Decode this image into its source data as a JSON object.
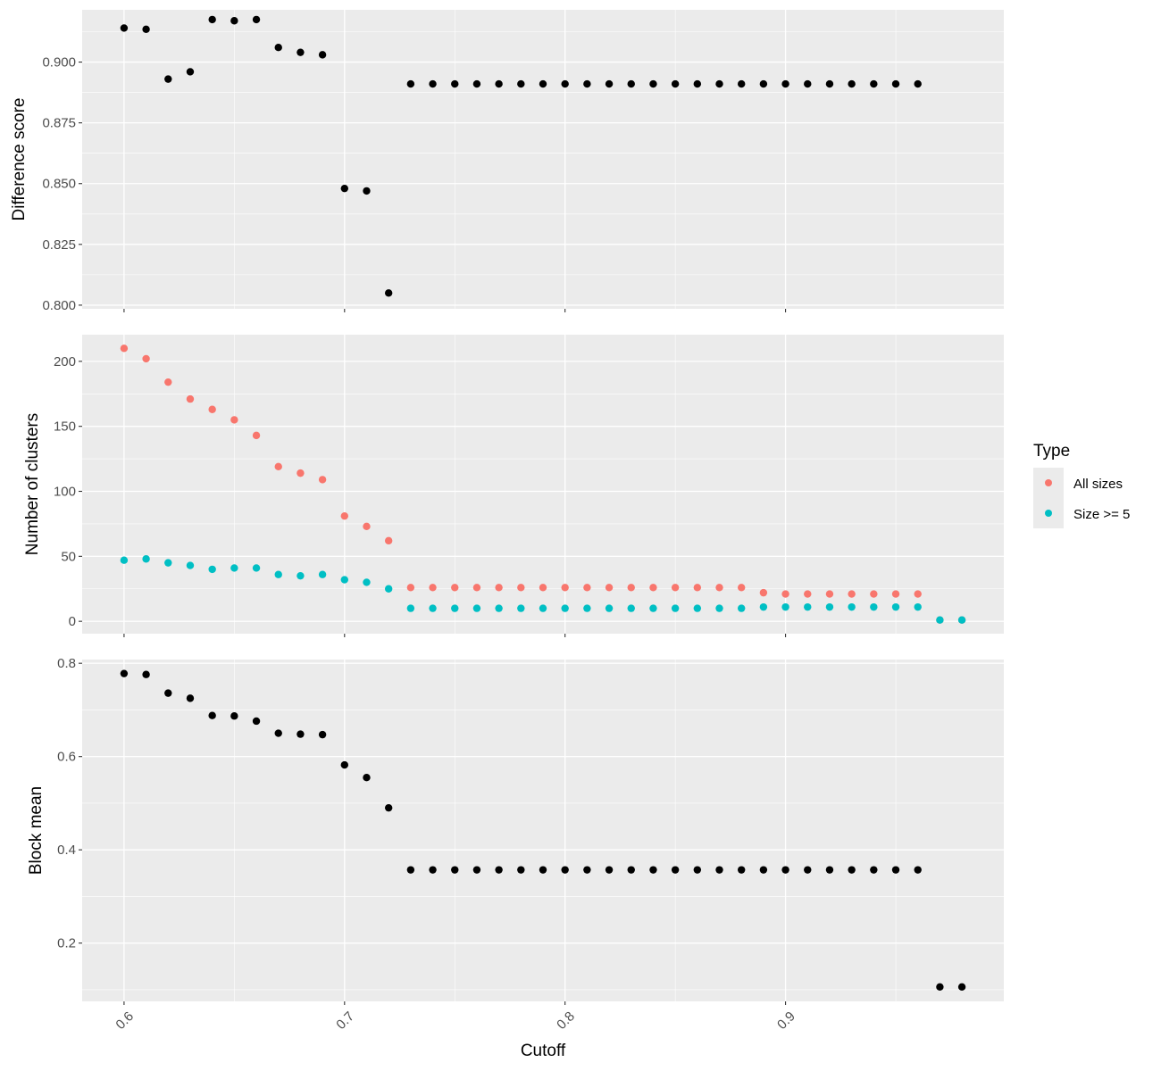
{
  "chart_data": [
    {
      "type": "scatter",
      "panel": "top",
      "title": "",
      "xlabel": "",
      "ylabel": "Difference score",
      "xlim": [
        0.581,
        0.999
      ],
      "ylim": [
        0.7985,
        0.9215
      ],
      "yticks": [
        0.8,
        0.825,
        0.85,
        0.875,
        0.9
      ],
      "ytick_labels": [
        "0.800",
        "0.825",
        "0.850",
        "0.875",
        "0.900"
      ],
      "grid": true,
      "series": [
        {
          "color": "#000000",
          "x": [
            0.6,
            0.61,
            0.62,
            0.63,
            0.64,
            0.65,
            0.66,
            0.67,
            0.68,
            0.69,
            0.7,
            0.71,
            0.72,
            0.73,
            0.74,
            0.75,
            0.76,
            0.77,
            0.78,
            0.79,
            0.8,
            0.81,
            0.82,
            0.83,
            0.84,
            0.85,
            0.86,
            0.87,
            0.88,
            0.89,
            0.9,
            0.91,
            0.92,
            0.93,
            0.94,
            0.95,
            0.96
          ],
          "y": [
            0.914,
            0.9135,
            0.893,
            0.896,
            0.9175,
            0.917,
            0.9175,
            0.906,
            0.904,
            0.903,
            0.848,
            0.847,
            0.805,
            0.891,
            0.891,
            0.891,
            0.891,
            0.891,
            0.891,
            0.891,
            0.891,
            0.891,
            0.891,
            0.891,
            0.891,
            0.891,
            0.891,
            0.891,
            0.891,
            0.891,
            0.891,
            0.891,
            0.891,
            0.891,
            0.891,
            0.891,
            0.891
          ]
        }
      ]
    },
    {
      "type": "scatter",
      "panel": "middle",
      "title": "",
      "xlabel": "",
      "ylabel": "Number of clusters",
      "xlim": [
        0.581,
        0.999
      ],
      "ylim": [
        -9.5,
        220.5
      ],
      "yticks": [
        0,
        50,
        100,
        150,
        200
      ],
      "ytick_labels": [
        "0",
        "50",
        "100",
        "150",
        "200"
      ],
      "grid": true,
      "series": [
        {
          "name": "All sizes",
          "color": "#F8766D",
          "x": [
            0.6,
            0.61,
            0.62,
            0.63,
            0.64,
            0.65,
            0.66,
            0.67,
            0.68,
            0.69,
            0.7,
            0.71,
            0.72,
            0.73,
            0.74,
            0.75,
            0.76,
            0.77,
            0.78,
            0.79,
            0.8,
            0.81,
            0.82,
            0.83,
            0.84,
            0.85,
            0.86,
            0.87,
            0.88,
            0.89,
            0.9,
            0.91,
            0.92,
            0.93,
            0.94,
            0.95,
            0.96,
            0.97,
            0.98
          ],
          "y": [
            210,
            202,
            184,
            171,
            163,
            155,
            143,
            119,
            114,
            109,
            81,
            73,
            62,
            26,
            26,
            26,
            26,
            26,
            26,
            26,
            26,
            26,
            26,
            26,
            26,
            26,
            26,
            26,
            26,
            22,
            21,
            21,
            21,
            21,
            21,
            21,
            21,
            1,
            1
          ]
        },
        {
          "name": "Size >= 5",
          "color": "#00BFC4",
          "x": [
            0.6,
            0.61,
            0.62,
            0.63,
            0.64,
            0.65,
            0.66,
            0.67,
            0.68,
            0.69,
            0.7,
            0.71,
            0.72,
            0.73,
            0.74,
            0.75,
            0.76,
            0.77,
            0.78,
            0.79,
            0.8,
            0.81,
            0.82,
            0.83,
            0.84,
            0.85,
            0.86,
            0.87,
            0.88,
            0.89,
            0.9,
            0.91,
            0.92,
            0.93,
            0.94,
            0.95,
            0.96,
            0.97,
            0.98
          ],
          "y": [
            47,
            48,
            45,
            43,
            40,
            41,
            41,
            36,
            35,
            36,
            32,
            30,
            25,
            10,
            10,
            10,
            10,
            10,
            10,
            10,
            10,
            10,
            10,
            10,
            10,
            10,
            10,
            10,
            10,
            11,
            11,
            11,
            11,
            11,
            11,
            11,
            11,
            1,
            1
          ]
        }
      ]
    },
    {
      "type": "scatter",
      "panel": "bottom",
      "title": "",
      "xlabel": "Cutoff",
      "ylabel": "Block mean",
      "xlim": [
        0.581,
        0.999
      ],
      "ylim": [
        0.075,
        0.808
      ],
      "yticks": [
        0.2,
        0.4,
        0.6,
        0.8
      ],
      "ytick_labels": [
        "0.2",
        "0.4",
        "0.6",
        "0.8"
      ],
      "xticks": [
        0.6,
        0.7,
        0.8,
        0.9
      ],
      "xtick_labels": [
        "0.6",
        "0.7",
        "0.8",
        "0.9"
      ],
      "grid": true,
      "series": [
        {
          "color": "#000000",
          "x": [
            0.6,
            0.61,
            0.62,
            0.63,
            0.64,
            0.65,
            0.66,
            0.67,
            0.68,
            0.69,
            0.7,
            0.71,
            0.72,
            0.73,
            0.74,
            0.75,
            0.76,
            0.77,
            0.78,
            0.79,
            0.8,
            0.81,
            0.82,
            0.83,
            0.84,
            0.85,
            0.86,
            0.87,
            0.88,
            0.89,
            0.9,
            0.91,
            0.92,
            0.93,
            0.94,
            0.95,
            0.96,
            0.97,
            0.98
          ],
          "y": [
            0.778,
            0.776,
            0.736,
            0.725,
            0.688,
            0.687,
            0.676,
            0.65,
            0.648,
            0.647,
            0.582,
            0.555,
            0.49,
            0.357,
            0.357,
            0.357,
            0.357,
            0.357,
            0.357,
            0.357,
            0.357,
            0.357,
            0.357,
            0.357,
            0.357,
            0.357,
            0.357,
            0.357,
            0.357,
            0.357,
            0.357,
            0.357,
            0.357,
            0.357,
            0.357,
            0.357,
            0.357,
            0.106,
            0.106
          ]
        }
      ]
    }
  ],
  "legend": {
    "title": "Type",
    "placement": "right",
    "items": [
      {
        "label": "All sizes",
        "color": "#F8766D"
      },
      {
        "label": "Size >= 5",
        "color": "#00BFC4"
      }
    ]
  }
}
